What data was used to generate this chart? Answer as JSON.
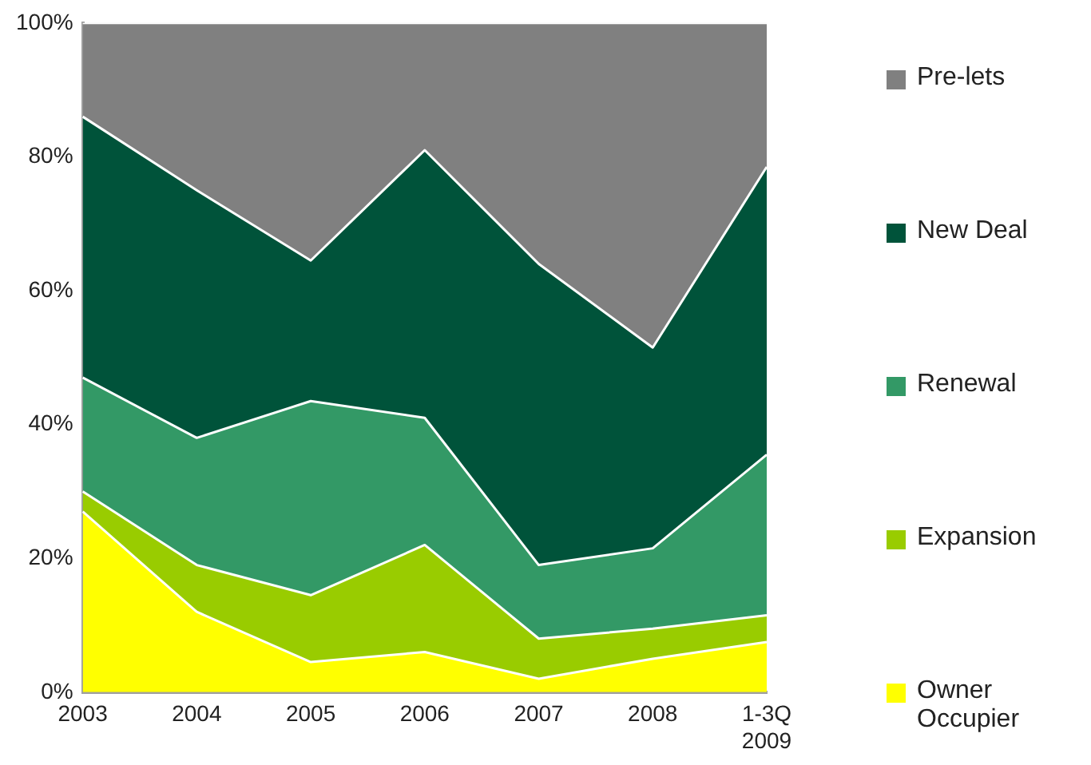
{
  "chart_data": {
    "type": "area",
    "stacked": true,
    "categories": [
      "2003",
      "2004",
      "2005",
      "2006",
      "2007",
      "2008",
      "1-3Q\n2009"
    ],
    "series": [
      {
        "name": "Owner Occupier",
        "color": "#ffff00",
        "values": [
          27,
          12,
          4.5,
          6,
          2,
          5,
          7.5
        ]
      },
      {
        "name": "Expansion",
        "color": "#99cc00",
        "values": [
          3,
          7,
          10,
          16,
          6,
          4.5,
          4
        ]
      },
      {
        "name": "Renewal",
        "color": "#339966",
        "values": [
          17,
          19,
          29,
          19,
          11,
          12,
          24
        ]
      },
      {
        "name": "New Deal",
        "color": "#00533a",
        "values": [
          39,
          37,
          21,
          40,
          45,
          30,
          43
        ]
      },
      {
        "name": "Pre-lets",
        "color": "#808080",
        "values": [
          14,
          25,
          35.5,
          19,
          36,
          48.5,
          21.5
        ]
      }
    ],
    "ylim": [
      0,
      100
    ],
    "yticks": [
      {
        "value": 0,
        "label": "0%"
      },
      {
        "value": 20,
        "label": "20%"
      },
      {
        "value": 40,
        "label": "40%"
      },
      {
        "value": 60,
        "label": "60%"
      },
      {
        "value": 80,
        "label": "80%"
      },
      {
        "value": 100,
        "label": "100%"
      }
    ],
    "grid": false,
    "legend": "right"
  }
}
